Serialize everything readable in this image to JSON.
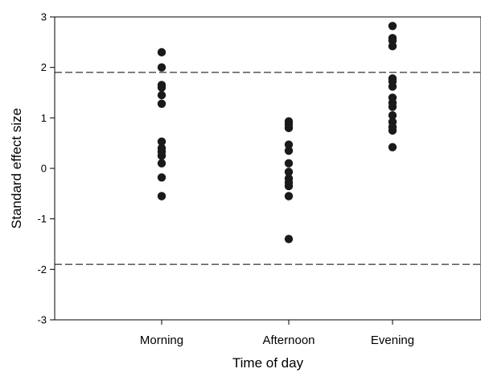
{
  "chart_data": {
    "type": "scatter",
    "title": "",
    "xlabel": "Time of day",
    "ylabel": "Standard effect size",
    "categories": [
      "Morning",
      "Afternoon",
      "Evening"
    ],
    "ylim": [
      -3,
      3
    ],
    "yticks": [
      "-3",
      "-2",
      "-1",
      "0",
      "1",
      "2",
      "3"
    ],
    "grid": false,
    "legend": "none",
    "reference_lines": [
      1.9,
      -1.9
    ],
    "point_color": "#1a1a1a",
    "series": [
      {
        "category": "Morning",
        "values": [
          2.3,
          2.0,
          1.65,
          1.6,
          1.45,
          1.28,
          0.53,
          0.4,
          0.33,
          0.25,
          0.1,
          -0.18,
          -0.55
        ]
      },
      {
        "category": "Afternoon",
        "values": [
          0.93,
          0.87,
          0.8,
          0.47,
          0.35,
          0.1,
          -0.07,
          -0.2,
          -0.28,
          -0.35,
          -0.55,
          -1.4
        ]
      },
      {
        "category": "Evening",
        "values": [
          2.82,
          2.58,
          2.53,
          2.42,
          1.78,
          1.72,
          1.62,
          1.4,
          1.3,
          1.22,
          1.05,
          0.92,
          0.82,
          0.75,
          0.42
        ]
      }
    ]
  }
}
